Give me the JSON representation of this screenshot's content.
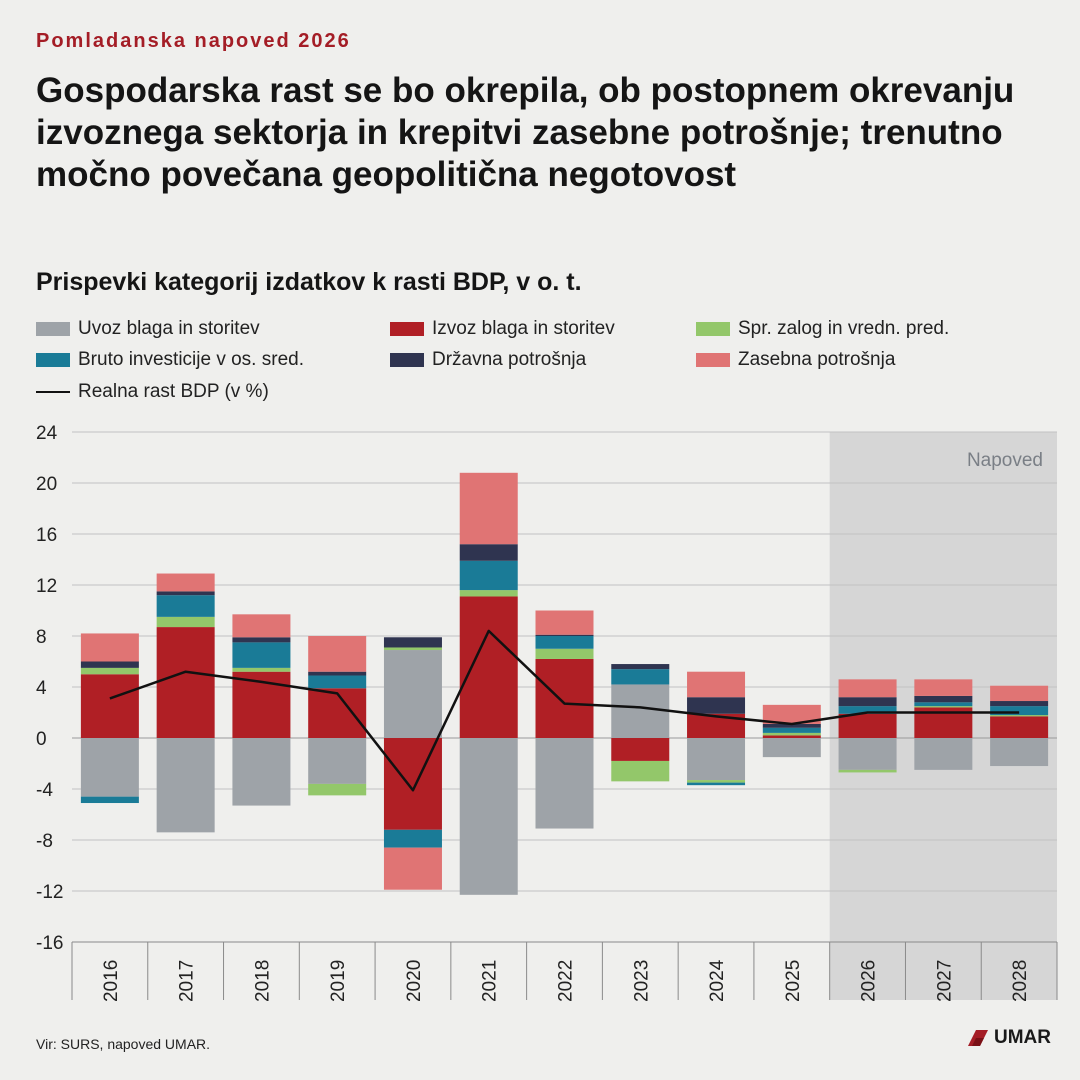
{
  "header": {
    "kicker": "Pomladanska napoved 2026",
    "headline": "Gospodarska rast se bo okrepila, ob postopnem okrevanju izvoznega sektorja in krepitvi zasebne potrošnje; trenutno močno povečana geopolitična negotovost",
    "subtitle": "Prispevki kategorij izdatkov k rasti BDP, v o. t."
  },
  "footer": {
    "source": "Vir: SURS, napoved UMAR.",
    "logo_text": "UMAR"
  },
  "colors": {
    "accent": "#a41d26",
    "forecast_bg": "#d6d6d6"
  },
  "legend": [
    {
      "label": "Uvoz blaga in storitev",
      "color": "#9ea3a8",
      "kind": "box"
    },
    {
      "label": "Izvoz blaga in storitev",
      "color": "#b01f25",
      "kind": "box"
    },
    {
      "label": "Spr. zalog in vredn. pred.",
      "color": "#93c76a",
      "kind": "box"
    },
    {
      "label": "Bruto investicije v os. sred.",
      "color": "#1a7b97",
      "kind": "box"
    },
    {
      "label": "Državna potrošnja",
      "color": "#2f3450",
      "kind": "box"
    },
    {
      "label": "Zasebna potrošnja",
      "color": "#e07474",
      "kind": "box"
    },
    {
      "label": "Realna rast BDP (v %)",
      "color": "#111111",
      "kind": "line"
    }
  ],
  "chart_data": {
    "type": "bar",
    "stacked": true,
    "title": "Prispevki kategorij izdatkov k rasti BDP, v o. t.",
    "categories": [
      "2016",
      "2017",
      "2018",
      "2019",
      "2020",
      "2021",
      "2022",
      "2023",
      "2024",
      "2025",
      "2026",
      "2027",
      "2028"
    ],
    "ylim": [
      -16,
      24
    ],
    "yticks": [
      24,
      20,
      16,
      12,
      8,
      4,
      0,
      -4,
      -8,
      -12,
      -16
    ],
    "forecast_label": "Napoved",
    "forecast_categories": [
      "2026",
      "2027",
      "2028"
    ],
    "grid": true,
    "series": [
      {
        "name": "Uvoz blaga in storitev",
        "color": "#9ea3a8",
        "values": [
          -4.6,
          -7.4,
          -5.3,
          -3.6,
          6.9,
          -12.3,
          -7.1,
          4.2,
          -3.3,
          -1.5,
          -2.5,
          -2.5,
          -2.2
        ]
      },
      {
        "name": "Izvoz blaga in storitev",
        "color": "#b01f25",
        "values": [
          5.0,
          8.7,
          5.2,
          3.9,
          -7.2,
          11.1,
          6.2,
          -1.8,
          1.9,
          0.2,
          1.9,
          2.4,
          1.7
        ]
      },
      {
        "name": "Spr. zalog in vredn. pred.",
        "color": "#93c76a",
        "values": [
          0.5,
          0.8,
          0.3,
          -0.9,
          0.2,
          0.5,
          0.8,
          -1.6,
          -0.2,
          0.2,
          -0.2,
          0.1,
          0.1
        ]
      },
      {
        "name": "Bruto investicije v os. sred.",
        "color": "#1a7b97",
        "values": [
          -0.5,
          1.7,
          2.0,
          1.0,
          -1.4,
          2.3,
          1.0,
          1.2,
          -0.2,
          0.4,
          0.6,
          0.3,
          0.7
        ]
      },
      {
        "name": "Državna potrošnja",
        "color": "#2f3450",
        "values": [
          0.5,
          0.3,
          0.4,
          0.3,
          0.8,
          1.3,
          0.1,
          0.4,
          1.3,
          0.3,
          0.7,
          0.5,
          0.4
        ]
      },
      {
        "name": "Zasebna potrošnja",
        "color": "#e07474",
        "values": [
          2.2,
          1.4,
          1.8,
          2.8,
          -3.3,
          5.6,
          1.9,
          0.0,
          2.0,
          1.5,
          1.4,
          1.3,
          1.2
        ]
      }
    ],
    "line": {
      "name": "Realna rast BDP (v %)",
      "color": "#111111",
      "values": [
        3.1,
        5.2,
        4.4,
        3.5,
        -4.1,
        8.4,
        2.7,
        2.4,
        1.7,
        1.1,
        2.0,
        2.0,
        2.0
      ]
    }
  }
}
